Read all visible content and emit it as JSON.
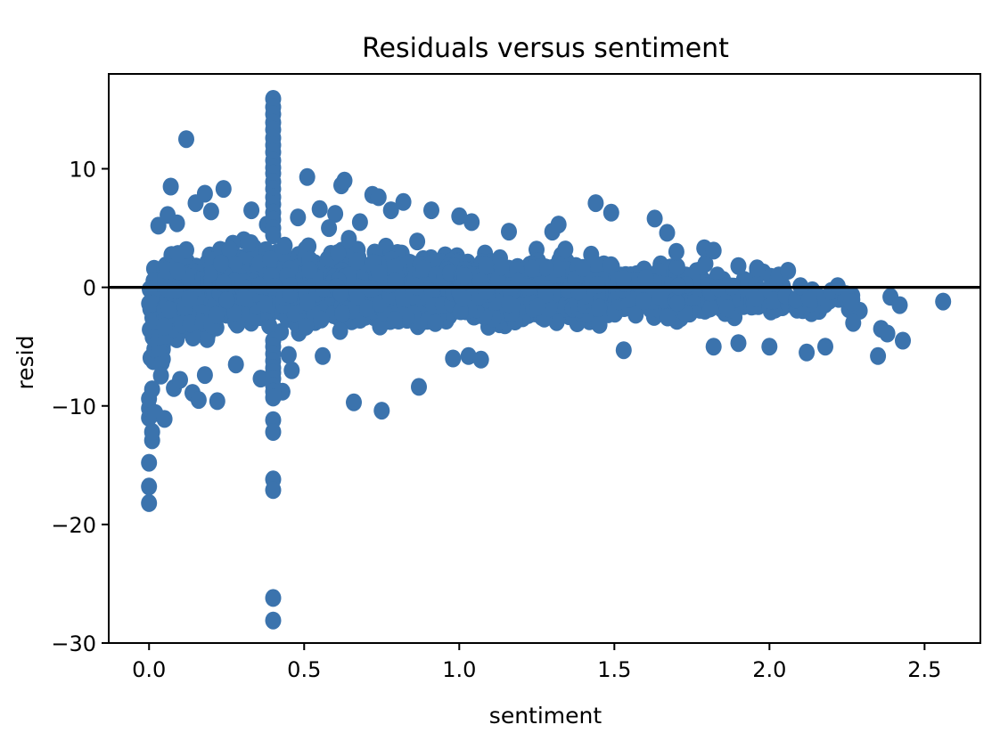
{
  "chart_data": {
    "type": "scatter",
    "title": "Residuals versus sentiment",
    "xlabel": "sentiment",
    "ylabel": "resid",
    "xlim": [
      -0.13,
      2.68
    ],
    "ylim": [
      -30,
      18
    ],
    "x_ticks": [
      {
        "value": 0.0,
        "label": "0.0"
      },
      {
        "value": 0.5,
        "label": "0.5"
      },
      {
        "value": 1.0,
        "label": "1.0"
      },
      {
        "value": 1.5,
        "label": "1.5"
      },
      {
        "value": 2.0,
        "label": "2.0"
      },
      {
        "value": 2.5,
        "label": "2.5"
      }
    ],
    "y_ticks": [
      {
        "value": 10,
        "label": "10"
      },
      {
        "value": 0,
        "label": "0"
      },
      {
        "value": -10,
        "label": "−10"
      },
      {
        "value": -20,
        "label": "−20"
      },
      {
        "value": -30,
        "label": "−30"
      }
    ],
    "reference_line": {
      "y": 0,
      "color": "#000000"
    },
    "point_color": "#3b73ad",
    "grid": false,
    "legend": "none",
    "bands": [
      {
        "x0": 0.0,
        "x1": 0.05,
        "lo": -9.0,
        "hi": 3.0,
        "n": 70
      },
      {
        "x0": 0.05,
        "x1": 0.2,
        "lo": -5.5,
        "hi": 4.2,
        "n": 160
      },
      {
        "x0": 0.2,
        "x1": 0.5,
        "lo": -4.5,
        "hi": 4.5,
        "n": 360
      },
      {
        "x0": 0.5,
        "x1": 1.0,
        "lo": -4.2,
        "hi": 4.2,
        "n": 620
      },
      {
        "x0": 1.0,
        "x1": 1.5,
        "lo": -3.8,
        "hi": 3.4,
        "n": 520
      },
      {
        "x0": 1.5,
        "x1": 1.8,
        "lo": -3.3,
        "hi": 2.7,
        "n": 260
      },
      {
        "x0": 1.8,
        "x1": 2.05,
        "lo": -2.8,
        "hi": 1.6,
        "n": 130
      },
      {
        "x0": 2.05,
        "x1": 2.3,
        "lo": -2.6,
        "hi": 0.3,
        "n": 30
      }
    ],
    "outliers": [
      [
        0.0,
        -18.2
      ],
      [
        0.0,
        -16.8
      ],
      [
        0.0,
        -14.8
      ],
      [
        0.01,
        -12.9
      ],
      [
        0.01,
        -12.2
      ],
      [
        0.0,
        -11.0
      ],
      [
        0.0,
        -10.2
      ],
      [
        0.0,
        -9.4
      ],
      [
        0.01,
        -8.6
      ],
      [
        0.02,
        -10.6
      ],
      [
        0.05,
        -11.1
      ],
      [
        0.08,
        -8.5
      ],
      [
        0.1,
        -7.8
      ],
      [
        0.14,
        -8.9
      ],
      [
        0.16,
        -9.5
      ],
      [
        0.22,
        -9.6
      ],
      [
        0.12,
        12.5
      ],
      [
        0.07,
        8.5
      ],
      [
        0.18,
        7.9
      ],
      [
        0.24,
        8.3
      ],
      [
        0.15,
        7.1
      ],
      [
        0.2,
        6.4
      ],
      [
        0.03,
        5.2
      ],
      [
        0.06,
        6.1
      ],
      [
        0.09,
        5.4
      ],
      [
        0.33,
        6.5
      ],
      [
        0.38,
        5.3
      ],
      [
        0.48,
        5.9
      ],
      [
        0.51,
        9.3
      ],
      [
        0.55,
        6.6
      ],
      [
        0.6,
        6.2
      ],
      [
        0.62,
        8.6
      ],
      [
        0.63,
        9.0
      ],
      [
        0.58,
        5.0
      ],
      [
        0.68,
        5.5
      ],
      [
        0.72,
        7.8
      ],
      [
        0.74,
        7.6
      ],
      [
        0.78,
        6.5
      ],
      [
        0.82,
        7.2
      ],
      [
        0.91,
        6.5
      ],
      [
        1.0,
        6.0
      ],
      [
        1.04,
        5.5
      ],
      [
        1.16,
        4.7
      ],
      [
        1.3,
        4.7
      ],
      [
        1.32,
        5.3
      ],
      [
        1.44,
        7.1
      ],
      [
        1.49,
        6.3
      ],
      [
        1.63,
        5.8
      ],
      [
        1.67,
        4.6
      ],
      [
        1.7,
        3.0
      ],
      [
        1.79,
        3.3
      ],
      [
        1.82,
        3.1
      ],
      [
        1.9,
        1.8
      ],
      [
        1.96,
        1.6
      ],
      [
        2.03,
        1.0
      ],
      [
        2.06,
        1.4
      ],
      [
        2.1,
        0.1
      ],
      [
        2.2,
        -0.3
      ],
      [
        2.22,
        0.1
      ],
      [
        2.27,
        -3.0
      ],
      [
        2.35,
        -5.8
      ],
      [
        2.36,
        -3.5
      ],
      [
        2.38,
        -3.9
      ],
      [
        2.39,
        -0.8
      ],
      [
        2.42,
        -1.5
      ],
      [
        2.43,
        -4.5
      ],
      [
        2.56,
        -1.2
      ],
      [
        2.12,
        -5.5
      ],
      [
        2.18,
        -5.0
      ],
      [
        2.0,
        -5.0
      ],
      [
        1.82,
        -5.0
      ],
      [
        1.9,
        -4.7
      ],
      [
        1.53,
        -5.3
      ],
      [
        0.66,
        -9.7
      ],
      [
        0.75,
        -10.4
      ],
      [
        0.87,
        -8.4
      ],
      [
        0.98,
        -6.0
      ],
      [
        1.03,
        -5.8
      ],
      [
        1.07,
        -6.1
      ],
      [
        0.45,
        -5.7
      ],
      [
        0.56,
        -5.8
      ],
      [
        0.36,
        -7.7
      ],
      [
        0.28,
        -6.5
      ],
      [
        0.18,
        -7.4
      ],
      [
        0.46,
        -7.0
      ],
      [
        0.43,
        -8.8
      ]
    ],
    "vertical_cluster": {
      "x": 0.4,
      "values": [
        15.9,
        15.2,
        14.6,
        13.9,
        13.3,
        12.6,
        12.0,
        11.4,
        10.7,
        10.1,
        9.6,
        8.9,
        8.3,
        7.6,
        7.0,
        6.3,
        5.7,
        5.0,
        4.4,
        -4.5,
        -5.0,
        -5.6,
        -6.2,
        -6.8,
        -7.2,
        -7.7,
        -8.3,
        -8.8,
        -9.3,
        -11.2,
        -12.2,
        -16.2,
        -17.1,
        -26.2,
        -28.1
      ]
    }
  }
}
